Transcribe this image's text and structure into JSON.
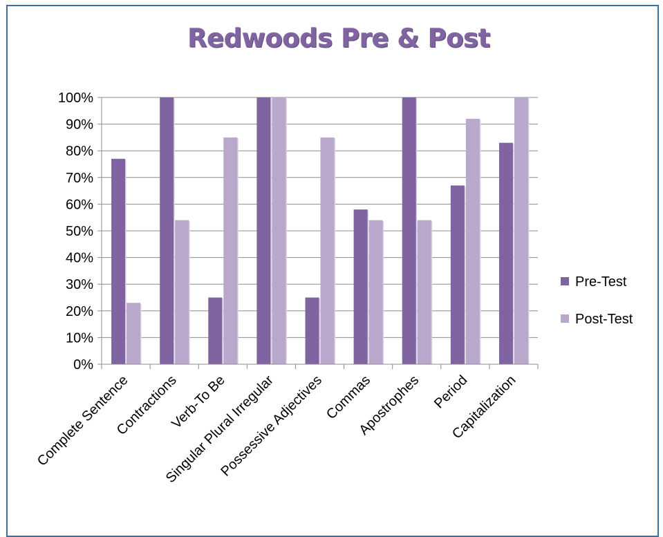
{
  "chart_data": {
    "type": "bar",
    "title": "Redwoods Pre & Post",
    "xlabel": "",
    "ylabel": "",
    "ylim": [
      0,
      1
    ],
    "y_ticks": [
      "0%",
      "10%",
      "20%",
      "30%",
      "40%",
      "50%",
      "60%",
      "70%",
      "80%",
      "90%",
      "100%"
    ],
    "grid": true,
    "legend_position": "right",
    "categories": [
      "Complete Sentence",
      "Contractions",
      "Verb-To Be",
      "Singular Plural Irregular",
      "Possessive Adjectives",
      "Commas",
      "Apostrophes",
      "Period",
      "Capitalization"
    ],
    "series": [
      {
        "name": "Pre-Test",
        "color": "#8064a2",
        "values": [
          0.77,
          1.0,
          0.25,
          1.0,
          0.25,
          0.58,
          1.0,
          0.67,
          0.83
        ]
      },
      {
        "name": "Post-Test",
        "color": "#b9a7cc",
        "values": [
          0.23,
          0.54,
          0.85,
          1.0,
          0.85,
          0.54,
          0.54,
          0.92,
          1.0
        ]
      }
    ]
  }
}
